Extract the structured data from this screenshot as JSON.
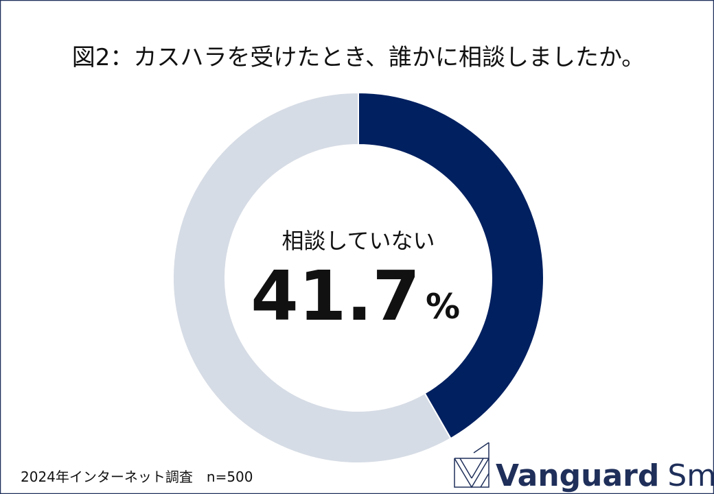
{
  "chart_data": {
    "type": "donut",
    "title": "図2：カスハラを受けたとき、誰かに相談しましたか。",
    "categories": [
      "相談していない",
      null
    ],
    "values": [
      41.7,
      58.3
    ],
    "colors": [
      "#002060",
      "#d6dce5"
    ],
    "unit": "%",
    "source": "2024年インターネット調査　n=500"
  },
  "logo": {
    "bold": "Vanguard",
    "regular": "Smith"
  }
}
